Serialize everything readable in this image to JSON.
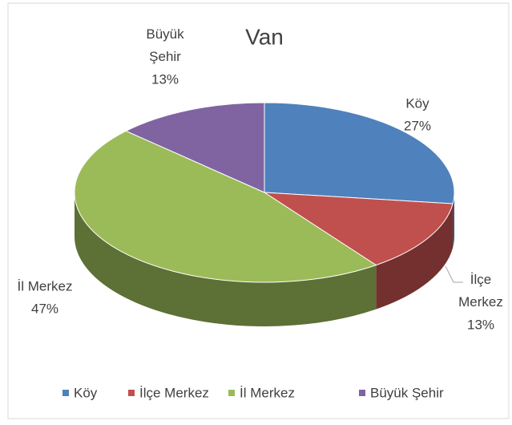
{
  "chart_data": {
    "type": "pie",
    "title": "Van",
    "categories": [
      "Köy",
      "İlçe Merkez",
      "İl Merkez",
      "Büyük Şehir"
    ],
    "values": [
      27,
      13,
      47,
      13
    ],
    "value_labels": [
      "27%",
      "13%",
      "47%",
      "13%"
    ],
    "colors": [
      "#4f81bd",
      "#c0504d",
      "#9bbb59",
      "#8064a2"
    ],
    "legend": "bottom"
  }
}
